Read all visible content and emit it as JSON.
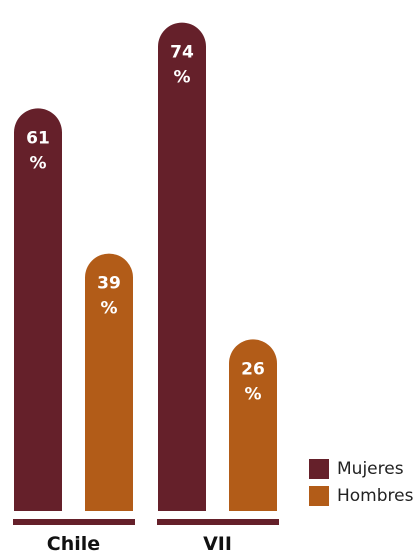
{
  "chart_data": {
    "type": "bar",
    "categories": [
      "Chile",
      "VII"
    ],
    "series": [
      {
        "name": "Mujeres",
        "values": [
          61,
          74
        ],
        "color": "#65202a"
      },
      {
        "name": "Hombres",
        "values": [
          39,
          26
        ],
        "color": "#b25c18"
      }
    ],
    "value_suffix": "%",
    "ylim": [
      0,
      80
    ],
    "grid": false,
    "legend_position": "bottom-right"
  }
}
